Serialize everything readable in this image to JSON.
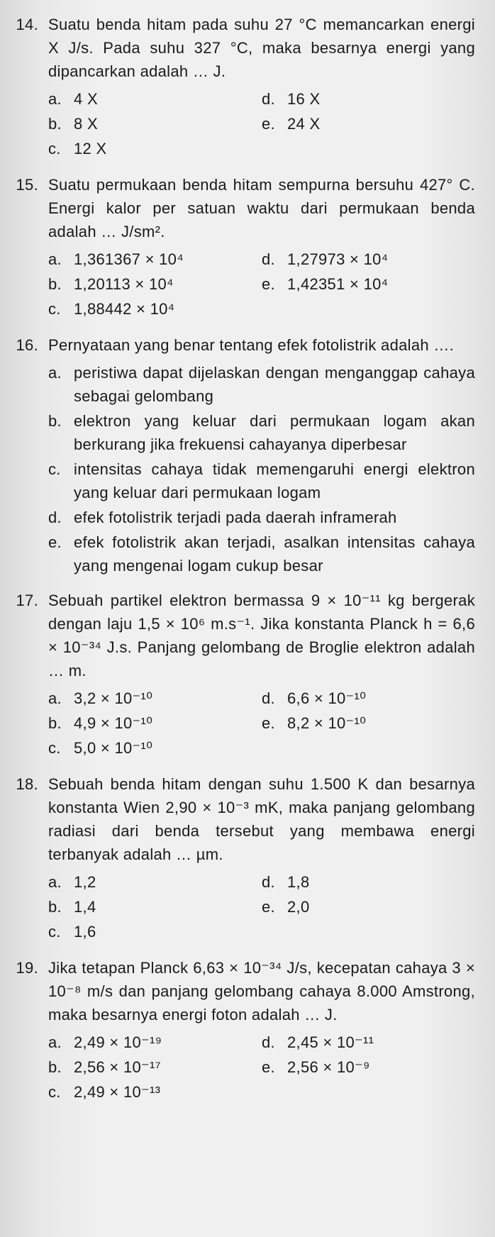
{
  "questions": [
    {
      "num": "14.",
      "text": "Suatu benda hitam pada suhu 27 °C memancarkan energi X J/s. Pada suhu 327 °C, maka besarnya energi yang dipancarkan adalah … J.",
      "layout": "two-col",
      "left": [
        {
          "l": "a.",
          "t": "4 X"
        },
        {
          "l": "b.",
          "t": "8 X"
        },
        {
          "l": "c.",
          "t": "12 X"
        }
      ],
      "right": [
        {
          "l": "d.",
          "t": "16 X"
        },
        {
          "l": "e.",
          "t": "24 X"
        }
      ]
    },
    {
      "num": "15.",
      "text": "Suatu permukaan benda hitam sempurna bersuhu 427° C. Energi kalor per satuan waktu dari permukaan benda adalah … J/sm².",
      "layout": "two-col",
      "left": [
        {
          "l": "a.",
          "t": "1,361367 × 10⁴"
        },
        {
          "l": "b.",
          "t": "1,20113 × 10⁴"
        },
        {
          "l": "c.",
          "t": "1,88442 × 10⁴"
        }
      ],
      "right": [
        {
          "l": "d.",
          "t": "1,27973 × 10⁴"
        },
        {
          "l": "e.",
          "t": "1,42351 × 10⁴"
        }
      ]
    },
    {
      "num": "16.",
      "text": "Pernyataan yang benar tentang efek fotolistrik adalah ….",
      "layout": "single",
      "options": [
        {
          "l": "a.",
          "t": "peristiwa dapat dijelaskan dengan menganggap cahaya sebagai gelombang"
        },
        {
          "l": "b.",
          "t": "elektron yang keluar dari permukaan logam akan berkurang jika frekuensi cahayanya diperbesar"
        },
        {
          "l": "c.",
          "t": "intensitas cahaya tidak memengaruhi energi elektron yang keluar dari permukaan logam"
        },
        {
          "l": "d.",
          "t": "efek fotolistrik terjadi pada daerah inframerah"
        },
        {
          "l": "e.",
          "t": "efek fotolistrik akan terjadi, asalkan intensitas cahaya yang mengenai logam cukup besar"
        }
      ]
    },
    {
      "num": "17.",
      "text": "Sebuah partikel elektron bermassa 9 × 10⁻¹¹ kg bergerak dengan laju 1,5 × 10⁶ m.s⁻¹. Jika konstanta Planck h = 6,6 × 10⁻³⁴ J.s. Panjang gelombang de Broglie elektron adalah … m.",
      "layout": "two-col",
      "left": [
        {
          "l": "a.",
          "t": "3,2 × 10⁻¹⁰"
        },
        {
          "l": "b.",
          "t": "4,9 × 10⁻¹⁰"
        },
        {
          "l": "c.",
          "t": "5,0 × 10⁻¹⁰"
        }
      ],
      "right": [
        {
          "l": "d.",
          "t": "6,6 × 10⁻¹⁰"
        },
        {
          "l": "e.",
          "t": "8,2 × 10⁻¹⁰"
        }
      ]
    },
    {
      "num": "18.",
      "text": "Sebuah benda hitam dengan suhu 1.500 K dan besarnya konstanta Wien 2,90 × 10⁻³ mK, maka panjang gelombang radiasi dari benda tersebut yang membawa energi terbanyak adalah … µm.",
      "layout": "two-col",
      "left": [
        {
          "l": "a.",
          "t": "1,2"
        },
        {
          "l": "b.",
          "t": "1,4"
        },
        {
          "l": "c.",
          "t": "1,6"
        }
      ],
      "right": [
        {
          "l": "d.",
          "t": "1,8"
        },
        {
          "l": "e.",
          "t": "2,0"
        }
      ]
    },
    {
      "num": "19.",
      "text": "Jika tetapan Planck 6,63 × 10⁻³⁴ J/s, kecepatan cahaya 3 × 10⁻⁸ m/s dan panjang gelombang cahaya 8.000 Amstrong, maka besarnya energi foton adalah … J.",
      "layout": "two-col",
      "left": [
        {
          "l": "a.",
          "t": "2,49 × 10⁻¹⁹"
        },
        {
          "l": "b.",
          "t": "2,56 × 10⁻¹⁷"
        },
        {
          "l": "c.",
          "t": "2,49 × 10⁻¹³"
        }
      ],
      "right": [
        {
          "l": "d.",
          "t": "2,45 × 10⁻¹¹"
        },
        {
          "l": "e.",
          "t": "2,56 × 10⁻⁹"
        }
      ]
    }
  ]
}
